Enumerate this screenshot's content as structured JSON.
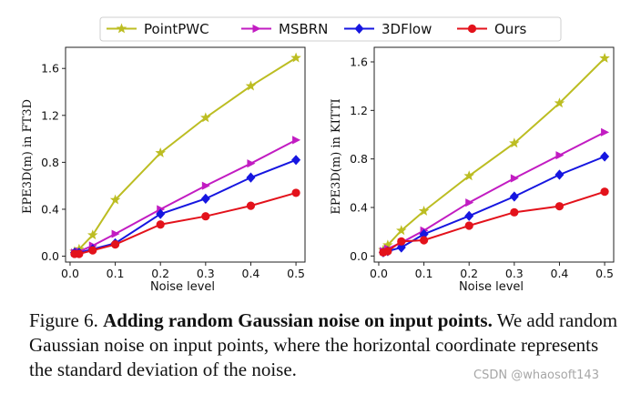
{
  "legend": [
    {
      "name": "PointPWC",
      "color": "#bcbd22",
      "marker": "star"
    },
    {
      "name": "MSBRN",
      "color": "#c21cc2",
      "marker": "triangle-right"
    },
    {
      "name": "3DFlow",
      "color": "#1616e0",
      "marker": "diamond"
    },
    {
      "name": "Ours",
      "color": "#e3121b",
      "marker": "circle"
    }
  ],
  "chart_data": [
    {
      "type": "line",
      "title": "",
      "xlabel": "Noise level",
      "ylabel": "EPE3D(m) in FT3D",
      "xlim": [
        -0.01,
        0.52
      ],
      "ylim": [
        -0.05,
        1.78
      ],
      "xticks": [
        0.0,
        0.1,
        0.2,
        0.3,
        0.4,
        0.5
      ],
      "xtick_labels": [
        "0.0",
        "0.1",
        "0.2",
        "0.3",
        "0.4",
        "0.5"
      ],
      "yticks": [
        0.0,
        0.4,
        0.8,
        1.2,
        1.6
      ],
      "ytick_labels": [
        "0.0",
        "0.4",
        "0.8",
        "1.2",
        "1.6"
      ],
      "x": [
        0.01,
        0.02,
        0.05,
        0.1,
        0.2,
        0.3,
        0.4,
        0.5
      ],
      "series": [
        {
          "name": "PointPWC",
          "values": [
            0.04,
            0.06,
            0.18,
            0.48,
            0.88,
            1.18,
            1.45,
            1.69
          ]
        },
        {
          "name": "MSBRN",
          "values": [
            0.03,
            0.04,
            0.09,
            0.19,
            0.4,
            0.6,
            0.79,
            0.99
          ]
        },
        {
          "name": "3DFlow",
          "values": [
            0.03,
            0.03,
            0.06,
            0.11,
            0.36,
            0.49,
            0.67,
            0.82
          ]
        },
        {
          "name": "Ours",
          "values": [
            0.02,
            0.02,
            0.05,
            0.1,
            0.27,
            0.34,
            0.43,
            0.54
          ]
        }
      ]
    },
    {
      "type": "line",
      "title": "",
      "xlabel": "Noise level",
      "ylabel": "EPE3D(m) in KITTI",
      "xlim": [
        -0.01,
        0.52
      ],
      "ylim": [
        -0.05,
        1.72
      ],
      "xticks": [
        0.0,
        0.1,
        0.2,
        0.3,
        0.4,
        0.5
      ],
      "xtick_labels": [
        "0.0",
        "0.1",
        "0.2",
        "0.3",
        "0.4",
        "0.5"
      ],
      "yticks": [
        0.0,
        0.4,
        0.8,
        1.2,
        1.6
      ],
      "ytick_labels": [
        "0.0",
        "0.4",
        "0.8",
        "1.2",
        "1.6"
      ],
      "x": [
        0.01,
        0.02,
        0.05,
        0.1,
        0.2,
        0.3,
        0.4,
        0.5
      ],
      "series": [
        {
          "name": "PointPWC",
          "values": [
            0.05,
            0.09,
            0.21,
            0.37,
            0.66,
            0.93,
            1.26,
            1.63
          ]
        },
        {
          "name": "MSBRN",
          "values": [
            0.04,
            0.06,
            0.11,
            0.21,
            0.44,
            0.64,
            0.83,
            1.02
          ]
        },
        {
          "name": "3DFlow",
          "values": [
            0.03,
            0.04,
            0.07,
            0.18,
            0.33,
            0.49,
            0.67,
            0.82
          ]
        },
        {
          "name": "Ours",
          "values": [
            0.03,
            0.04,
            0.12,
            0.13,
            0.25,
            0.36,
            0.41,
            0.53
          ]
        }
      ]
    }
  ],
  "caption": {
    "label": "Figure 6.",
    "bold": "Adding random Gaussian noise on input points.",
    "text": "We add random Gaussian noise on input points, where the horizontal coordinate represents the standard deviation of the noise."
  },
  "watermark": "CSDN @whaosoft143"
}
